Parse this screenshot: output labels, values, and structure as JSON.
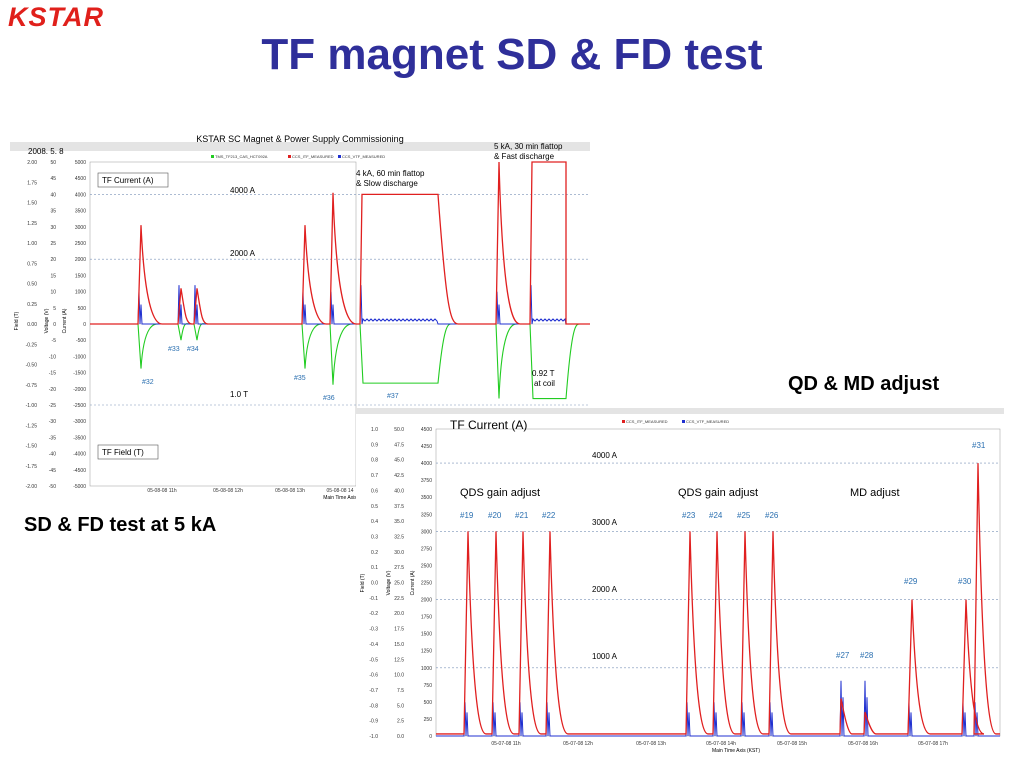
{
  "logo": "KSTAR",
  "slide_title": "TF magnet SD & FD test",
  "caption_left": "SD & FD test at 5 kA",
  "caption_right": "QD & MD adjust",
  "colors": {
    "current": "#e02020",
    "voltage": "#2030d0",
    "field": "#22cc22",
    "title": "#2f2f9a",
    "logo": "#e0201b"
  },
  "chart_data": [
    {
      "type": "line",
      "title": "KSTAR SC Magnet & Power Supply Commissioning",
      "date": "2008. 5. 8",
      "legend": [
        "TMS_TF213_CAS_HCT092A",
        "CCS_ITF_MEASURED",
        "CCS_VTF_MEASURED"
      ],
      "axes": {
        "field_label": "Field (T)",
        "voltage_label": "Voltage (V)",
        "current_label": "Current (A)",
        "field_ticks": [
          "2.00",
          "1.75",
          "1.50",
          "1.25",
          "1.00",
          "0.75",
          "0.50",
          "0.25",
          "0.00",
          "-0.25",
          "-0.50",
          "-0.75",
          "-1.00",
          "-1.25",
          "-1.50",
          "-1.75",
          "-2.00"
        ],
        "voltage_ticks": [
          "50",
          "45",
          "40",
          "35",
          "30",
          "25",
          "20",
          "15",
          "10",
          "5",
          "0",
          "-5",
          "-10",
          "-15",
          "-20",
          "-25",
          "-30",
          "-35",
          "-40",
          "-45",
          "-50"
        ],
        "current_ticks": [
          "5000",
          "4500",
          "4000",
          "3500",
          "3000",
          "2500",
          "2000",
          "1500",
          "1000",
          "500",
          "0",
          "-500",
          "-1000",
          "-1500",
          "-2000",
          "-2500",
          "-3000",
          "-3500",
          "-4000",
          "-4500",
          "-5000"
        ],
        "x_ticks": [
          "05-08-08 11h",
          "05-08-08 12h",
          "05-08-08 13h",
          "05-08-08 14"
        ],
        "x_label": "Main Time Axis"
      },
      "annotations": {
        "tf_current": "TF Current (A)",
        "tf_field": "TF Field (T)",
        "level_4000": "4000 A",
        "level_2000": "2000 A",
        "level_1t": "1.0 T",
        "slow_1": "4 kA, 60 min flattop",
        "slow_2": "& Slow discharge",
        "fast_1": "5 kA, 30 min flattop",
        "fast_2": "& Fast discharge",
        "coil_1": "0.92 T",
        "coil_2": "at coil"
      },
      "shot_labels": [
        "#32",
        "#33",
        "#34",
        "#35",
        "#36",
        "#37"
      ],
      "current_events_A": [
        {
          "shot": "#32",
          "peak": 3050
        },
        {
          "shot": "#33",
          "peak": 1100
        },
        {
          "shot": "#34",
          "peak": 1100
        },
        {
          "shot": "#35",
          "peak": 3050
        },
        {
          "shot": "#36",
          "peak": 4050
        },
        {
          "shot": "#37",
          "flattop": 4000
        },
        {
          "shot": "",
          "peak": 5000
        },
        {
          "shot": "",
          "flattop": 5000
        }
      ],
      "field_events_T": [
        {
          "shot": "#32",
          "min": -0.55
        },
        {
          "shot": "#33",
          "min": -0.2
        },
        {
          "shot": "#34",
          "min": -0.2
        },
        {
          "shot": "#35",
          "min": -0.55
        },
        {
          "shot": "#36",
          "min": -0.75
        },
        {
          "shot": "#37",
          "flattop": -0.73
        },
        {
          "shot": "",
          "min": -0.92
        },
        {
          "shot": "",
          "flattop": -0.92
        }
      ]
    },
    {
      "type": "line",
      "title": "TF Current (A)",
      "legend": [
        "CCS_ITF_MEASURED",
        "CCS_VTF_MEASURED"
      ],
      "axes": {
        "field_label": "Field (T)",
        "voltage_label": "Voltage (V)",
        "current_label": "Current (A)",
        "field_ticks": [
          "1.0",
          "0.9",
          "0.8",
          "0.7",
          "0.6",
          "0.5",
          "0.4",
          "0.3",
          "0.2",
          "0.1",
          "0.0",
          "-0.1",
          "-0.2",
          "-0.3",
          "-0.4",
          "-0.5",
          "-0.6",
          "-0.7",
          "-0.8",
          "-0.9",
          "-1.0"
        ],
        "voltage_ticks": [
          "50.0",
          "47.5",
          "45.0",
          "42.5",
          "40.0",
          "37.5",
          "35.0",
          "32.5",
          "30.0",
          "27.5",
          "25.0",
          "22.5",
          "20.0",
          "17.5",
          "15.0",
          "12.5",
          "10.0",
          "7.5",
          "5.0",
          "2.5",
          "0.0"
        ],
        "current_ticks": [
          "4500",
          "4250",
          "4000",
          "3750",
          "3500",
          "3250",
          "3000",
          "2750",
          "2500",
          "2250",
          "2000",
          "1750",
          "1500",
          "1250",
          "1000",
          "750",
          "500",
          "250",
          "0"
        ],
        "x_ticks": [
          "05-07-08 11h",
          "05-07-08 12h",
          "05-07-08 13h",
          "05-07-08 14h",
          "05-07-08 15h",
          "05-07-08 16h",
          "05-07-08 17h"
        ],
        "x_label": "Main Time Axis (KST)"
      },
      "annotations": {
        "level_4000": "4000 A",
        "level_3000": "3000 A",
        "level_2000": "2000 A",
        "level_1000": "1000 A",
        "qds_1": "QDS gain adjust",
        "qds_2": "QDS gain adjust",
        "md": "MD adjust"
      },
      "shot_labels": [
        "#19",
        "#20",
        "#21",
        "#22",
        "#23",
        "#24",
        "#25",
        "#26",
        "#27",
        "#28",
        "#29",
        "#30",
        "#31"
      ],
      "current_peaks_A": [
        {
          "shot": "#19",
          "peak": 3000
        },
        {
          "shot": "#20",
          "peak": 3000
        },
        {
          "shot": "#21",
          "peak": 3000
        },
        {
          "shot": "#22",
          "peak": 3000
        },
        {
          "shot": "#23",
          "peak": 3000
        },
        {
          "shot": "#24",
          "peak": 3000
        },
        {
          "shot": "#25",
          "peak": 3000
        },
        {
          "shot": "#26",
          "peak": 3000
        },
        {
          "shot": "#27",
          "peak": 550
        },
        {
          "shot": "#28",
          "peak": 350
        },
        {
          "shot": "#29",
          "peak": 2000
        },
        {
          "shot": "#30",
          "peak": 2000
        },
        {
          "shot": "#31",
          "peak": 4000
        }
      ]
    }
  ]
}
